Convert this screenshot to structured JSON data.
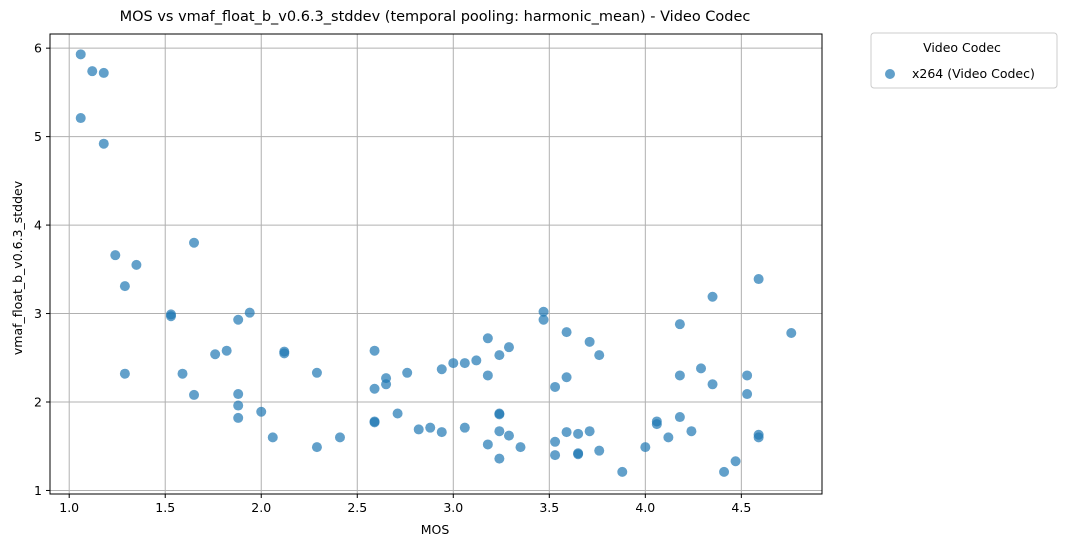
{
  "chart_data": {
    "type": "scatter",
    "title": "MOS vs vmaf_float_b_v0.6.3_stddev (temporal pooling: harmonic_mean) - Video Codec",
    "xlabel": "MOS",
    "ylabel": "vmaf_float_b_v0.6.3_stddev",
    "xlim": [
      0.9,
      4.92
    ],
    "ylim": [
      0.96,
      6.16
    ],
    "xticks": [
      1.0,
      1.5,
      2.0,
      2.5,
      3.0,
      3.5,
      4.0,
      4.5
    ],
    "xtick_labels": [
      "1.0",
      "1.5",
      "2.0",
      "2.5",
      "3.0",
      "3.5",
      "4.0",
      "4.5"
    ],
    "yticks": [
      1,
      2,
      3,
      4,
      5,
      6
    ],
    "ytick_labels": [
      "1",
      "2",
      "3",
      "4",
      "5",
      "6"
    ],
    "grid": true,
    "legend": {
      "title": "Video Codec",
      "placement": "outside-top-right"
    },
    "series": [
      {
        "name": "x264 (Video Codec)",
        "color": "#1f77b4",
        "points": [
          [
            1.06,
            5.93
          ],
          [
            1.12,
            5.74
          ],
          [
            1.18,
            5.72
          ],
          [
            1.06,
            5.21
          ],
          [
            1.18,
            4.92
          ],
          [
            1.24,
            3.66
          ],
          [
            1.35,
            3.55
          ],
          [
            1.29,
            3.31
          ],
          [
            1.29,
            2.32
          ],
          [
            1.53,
            2.97
          ],
          [
            1.53,
            2.99
          ],
          [
            1.59,
            2.32
          ],
          [
            1.65,
            3.8
          ],
          [
            1.65,
            2.08
          ],
          [
            1.76,
            2.54
          ],
          [
            1.82,
            2.58
          ],
          [
            1.88,
            2.93
          ],
          [
            1.88,
            2.09
          ],
          [
            1.88,
            1.96
          ],
          [
            1.88,
            1.82
          ],
          [
            1.94,
            3.01
          ],
          [
            2.0,
            1.89
          ],
          [
            2.06,
            1.6
          ],
          [
            2.12,
            2.57
          ],
          [
            2.12,
            2.55
          ],
          [
            2.29,
            2.33
          ],
          [
            2.29,
            1.49
          ],
          [
            2.41,
            1.6
          ],
          [
            2.59,
            2.58
          ],
          [
            2.59,
            2.15
          ],
          [
            2.59,
            1.78
          ],
          [
            2.59,
            1.77
          ],
          [
            2.65,
            2.27
          ],
          [
            2.65,
            2.2
          ],
          [
            2.71,
            1.87
          ],
          [
            2.76,
            2.33
          ],
          [
            2.82,
            1.69
          ],
          [
            2.88,
            1.71
          ],
          [
            2.94,
            1.66
          ],
          [
            2.94,
            2.37
          ],
          [
            3.0,
            2.44
          ],
          [
            3.06,
            2.44
          ],
          [
            3.06,
            1.71
          ],
          [
            3.12,
            2.47
          ],
          [
            3.18,
            2.72
          ],
          [
            3.18,
            2.3
          ],
          [
            3.18,
            1.52
          ],
          [
            3.24,
            2.53
          ],
          [
            3.24,
            1.87
          ],
          [
            3.24,
            1.86
          ],
          [
            3.24,
            1.67
          ],
          [
            3.24,
            1.36
          ],
          [
            3.29,
            2.62
          ],
          [
            3.29,
            1.62
          ],
          [
            3.35,
            1.49
          ],
          [
            3.47,
            3.02
          ],
          [
            3.47,
            2.93
          ],
          [
            3.53,
            2.17
          ],
          [
            3.53,
            1.55
          ],
          [
            3.53,
            1.4
          ],
          [
            3.59,
            2.79
          ],
          [
            3.59,
            2.28
          ],
          [
            3.59,
            1.66
          ],
          [
            3.65,
            1.64
          ],
          [
            3.65,
            1.42
          ],
          [
            3.65,
            1.41
          ],
          [
            3.71,
            2.68
          ],
          [
            3.71,
            1.67
          ],
          [
            3.76,
            2.53
          ],
          [
            3.76,
            1.45
          ],
          [
            3.88,
            1.21
          ],
          [
            4.0,
            1.49
          ],
          [
            4.06,
            1.78
          ],
          [
            4.06,
            1.75
          ],
          [
            4.12,
            1.6
          ],
          [
            4.18,
            2.88
          ],
          [
            4.18,
            2.3
          ],
          [
            4.18,
            1.83
          ],
          [
            4.24,
            1.67
          ],
          [
            4.29,
            2.38
          ],
          [
            4.35,
            3.19
          ],
          [
            4.35,
            2.2
          ],
          [
            4.41,
            1.21
          ],
          [
            4.47,
            1.33
          ],
          [
            4.53,
            2.3
          ],
          [
            4.53,
            2.09
          ],
          [
            4.59,
            3.39
          ],
          [
            4.59,
            1.63
          ],
          [
            4.59,
            1.6
          ],
          [
            4.76,
            2.78
          ]
        ]
      }
    ]
  }
}
